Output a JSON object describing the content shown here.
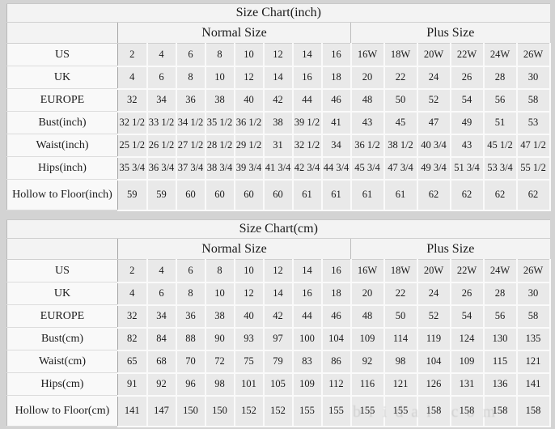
{
  "colors": {
    "page_background": "#d3d3d3",
    "header_background": "#f3f3f3",
    "label_cell_background": "#f9f9f9",
    "data_cell_background": "#e9e9e9",
    "grid_gap": "#fafafa",
    "label_divider": "#a6a6a6",
    "text": "#1b1b1b",
    "watermark": "#9c9c9c"
  },
  "watermark": {
    "text": "bridal com"
  },
  "chart_data": [
    {
      "type": "table",
      "title": "Size Chart(inch)",
      "group_headers": [
        {
          "label": "Normal Size",
          "colspan": 8
        },
        {
          "label": "Plus Size",
          "colspan": 6
        }
      ],
      "rows": [
        {
          "label": "US",
          "values": [
            "2",
            "4",
            "6",
            "8",
            "10",
            "12",
            "14",
            "16",
            "16W",
            "18W",
            "20W",
            "22W",
            "24W",
            "26W"
          ]
        },
        {
          "label": "UK",
          "values": [
            "4",
            "6",
            "8",
            "10",
            "12",
            "14",
            "16",
            "18",
            "20",
            "22",
            "24",
            "26",
            "28",
            "30"
          ]
        },
        {
          "label": "EUROPE",
          "values": [
            "32",
            "34",
            "36",
            "38",
            "40",
            "42",
            "44",
            "46",
            "48",
            "50",
            "52",
            "54",
            "56",
            "58"
          ]
        },
        {
          "label": "Bust(inch)",
          "values": [
            "32 1/2",
            "33 1/2",
            "34 1/2",
            "35 1/2",
            "36 1/2",
            "38",
            "39 1/2",
            "41",
            "43",
            "45",
            "47",
            "49",
            "51",
            "53"
          ]
        },
        {
          "label": "Waist(inch)",
          "values": [
            "25 1/2",
            "26 1/2",
            "27 1/2",
            "28 1/2",
            "29 1/2",
            "31",
            "32 1/2",
            "34",
            "36 1/2",
            "38 1/2",
            "40 3/4",
            "43",
            "45 1/2",
            "47 1/2"
          ]
        },
        {
          "label": "Hips(inch)",
          "values": [
            "35 3/4",
            "36 3/4",
            "37 3/4",
            "38 3/4",
            "39 3/4",
            "41 3/4",
            "42 3/4",
            "44 3/4",
            "45 3/4",
            "47 3/4",
            "49 3/4",
            "51 3/4",
            "53 3/4",
            "55 1/2"
          ]
        },
        {
          "label": "Hollow to Floor(inch)",
          "values": [
            "59",
            "59",
            "60",
            "60",
            "60",
            "60",
            "61",
            "61",
            "61",
            "61",
            "62",
            "62",
            "62",
            "62"
          ]
        }
      ]
    },
    {
      "type": "table",
      "title": "Size Chart(cm)",
      "group_headers": [
        {
          "label": "Normal Size",
          "colspan": 8
        },
        {
          "label": "Plus Size",
          "colspan": 6
        }
      ],
      "rows": [
        {
          "label": "US",
          "values": [
            "2",
            "4",
            "6",
            "8",
            "10",
            "12",
            "14",
            "16",
            "16W",
            "18W",
            "20W",
            "22W",
            "24W",
            "26W"
          ]
        },
        {
          "label": "UK",
          "values": [
            "4",
            "6",
            "8",
            "10",
            "12",
            "14",
            "16",
            "18",
            "20",
            "22",
            "24",
            "26",
            "28",
            "30"
          ]
        },
        {
          "label": "EUROPE",
          "values": [
            "32",
            "34",
            "36",
            "38",
            "40",
            "42",
            "44",
            "46",
            "48",
            "50",
            "52",
            "54",
            "56",
            "58"
          ]
        },
        {
          "label": "Bust(cm)",
          "values": [
            "82",
            "84",
            "88",
            "90",
            "93",
            "97",
            "100",
            "104",
            "109",
            "114",
            "119",
            "124",
            "130",
            "135"
          ]
        },
        {
          "label": "Waist(cm)",
          "values": [
            "65",
            "68",
            "70",
            "72",
            "75",
            "79",
            "83",
            "86",
            "92",
            "98",
            "104",
            "109",
            "115",
            "121"
          ]
        },
        {
          "label": "Hips(cm)",
          "values": [
            "91",
            "92",
            "96",
            "98",
            "101",
            "105",
            "109",
            "112",
            "116",
            "121",
            "126",
            "131",
            "136",
            "141"
          ]
        },
        {
          "label": "Hollow to Floor(cm)",
          "values": [
            "141",
            "147",
            "150",
            "150",
            "152",
            "152",
            "155",
            "155",
            "155",
            "155",
            "158",
            "158",
            "158",
            "158"
          ]
        }
      ]
    }
  ]
}
